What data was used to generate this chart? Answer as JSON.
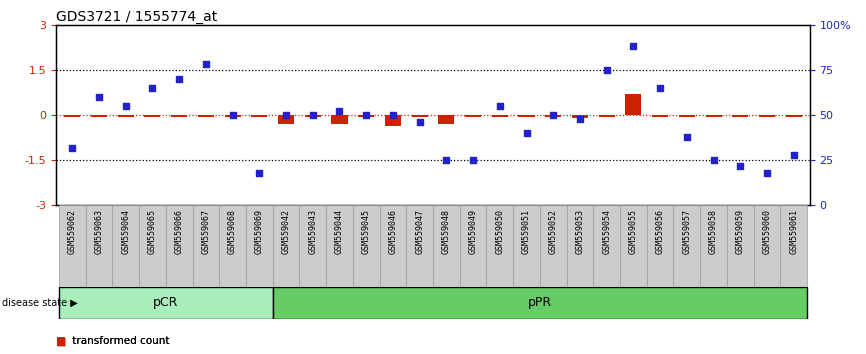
{
  "title": "GDS3721 / 1555774_at",
  "samples": [
    "GSM559062",
    "GSM559063",
    "GSM559064",
    "GSM559065",
    "GSM559066",
    "GSM559067",
    "GSM559068",
    "GSM559069",
    "GSM559042",
    "GSM559043",
    "GSM559044",
    "GSM559045",
    "GSM559046",
    "GSM559047",
    "GSM559048",
    "GSM559049",
    "GSM559050",
    "GSM559051",
    "GSM559052",
    "GSM559053",
    "GSM559054",
    "GSM559055",
    "GSM559056",
    "GSM559057",
    "GSM559058",
    "GSM559059",
    "GSM559060",
    "GSM559061"
  ],
  "transformed_count": [
    -0.08,
    -0.08,
    -0.05,
    -0.08,
    -0.08,
    -0.08,
    -0.08,
    -0.08,
    -0.3,
    -0.08,
    -0.3,
    -0.08,
    -0.38,
    -0.08,
    -0.3,
    -0.08,
    -0.08,
    -0.08,
    -0.08,
    -0.1,
    -0.08,
    0.7,
    -0.08,
    -0.08,
    -0.08,
    -0.08,
    -0.08,
    -0.08
  ],
  "percentile_rank": [
    32,
    60,
    55,
    65,
    70,
    78,
    50,
    18,
    50,
    50,
    52,
    50,
    50,
    46,
    25,
    25,
    55,
    40,
    50,
    48,
    75,
    88,
    65,
    38,
    25,
    22,
    18,
    28
  ],
  "pCR_count": 8,
  "ylim": [
    -3,
    3
  ],
  "yticks_left": [
    -3,
    -1.5,
    0,
    1.5,
    3
  ],
  "yticks_right": [
    0,
    25,
    50,
    75,
    100
  ],
  "bar_color": "#cc2200",
  "dot_color": "#2222cc",
  "pcr_color": "#aaeebb",
  "ppr_color": "#66cc66",
  "label_bg": "#cccccc",
  "label_edge": "#999999",
  "bg_color": "#ffffff"
}
